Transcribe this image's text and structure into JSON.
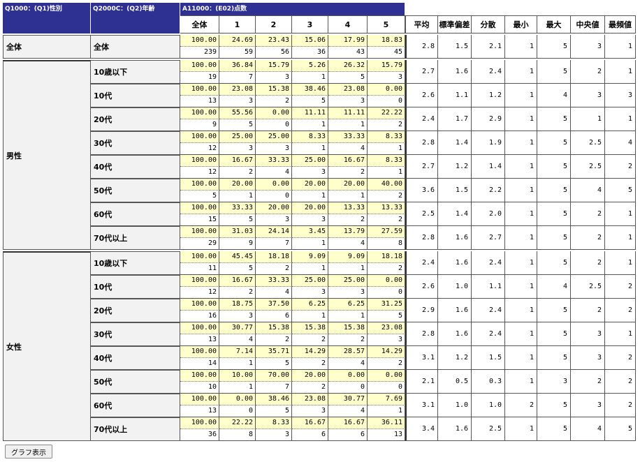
{
  "header": {
    "sex_col": "Q1000：(Q1)性別",
    "age_col": "Q2000C：(Q2)年齢",
    "score_col": "A11000：(E02)点数"
  },
  "columns": {
    "score": [
      "全体",
      "1",
      "2",
      "3",
      "4",
      "5"
    ],
    "stats": [
      "平均",
      "標準偏差",
      "分散",
      "最小",
      "最大",
      "中央値",
      "最頻値"
    ]
  },
  "groups": [
    {
      "label": "全体",
      "rows": [
        {
          "label": "全体",
          "pct": [
            "100.00",
            "24.69",
            "23.43",
            "15.06",
            "17.99",
            "18.83"
          ],
          "n": [
            "239",
            "59",
            "56",
            "36",
            "43",
            "45"
          ],
          "stats": [
            "2.8",
            "1.5",
            "2.1",
            "1",
            "5",
            "3",
            "1"
          ]
        }
      ]
    },
    {
      "label": "男性",
      "rows": [
        {
          "label": "10歳以下",
          "pct": [
            "100.00",
            "36.84",
            "15.79",
            "5.26",
            "26.32",
            "15.79"
          ],
          "n": [
            "19",
            "7",
            "3",
            "1",
            "5",
            "3"
          ],
          "stats": [
            "2.7",
            "1.6",
            "2.4",
            "1",
            "5",
            "2",
            "1"
          ]
        },
        {
          "label": "10代",
          "pct": [
            "100.00",
            "23.08",
            "15.38",
            "38.46",
            "23.08",
            "0.00"
          ],
          "n": [
            "13",
            "3",
            "2",
            "5",
            "3",
            "0"
          ],
          "stats": [
            "2.6",
            "1.1",
            "1.2",
            "1",
            "4",
            "3",
            "3"
          ]
        },
        {
          "label": "20代",
          "pct": [
            "100.00",
            "55.56",
            "0.00",
            "11.11",
            "11.11",
            "22.22"
          ],
          "n": [
            "9",
            "5",
            "0",
            "1",
            "1",
            "2"
          ],
          "stats": [
            "2.4",
            "1.7",
            "2.9",
            "1",
            "5",
            "1",
            "1"
          ]
        },
        {
          "label": "30代",
          "pct": [
            "100.00",
            "25.00",
            "25.00",
            "8.33",
            "33.33",
            "8.33"
          ],
          "n": [
            "12",
            "3",
            "3",
            "1",
            "4",
            "1"
          ],
          "stats": [
            "2.8",
            "1.4",
            "1.9",
            "1",
            "5",
            "2.5",
            "4"
          ]
        },
        {
          "label": "40代",
          "pct": [
            "100.00",
            "16.67",
            "33.33",
            "25.00",
            "16.67",
            "8.33"
          ],
          "n": [
            "12",
            "2",
            "4",
            "3",
            "2",
            "1"
          ],
          "stats": [
            "2.7",
            "1.2",
            "1.4",
            "1",
            "5",
            "2.5",
            "2"
          ]
        },
        {
          "label": "50代",
          "pct": [
            "100.00",
            "20.00",
            "0.00",
            "20.00",
            "20.00",
            "40.00"
          ],
          "n": [
            "5",
            "1",
            "0",
            "1",
            "1",
            "2"
          ],
          "stats": [
            "3.6",
            "1.5",
            "2.2",
            "1",
            "5",
            "4",
            "5"
          ]
        },
        {
          "label": "60代",
          "pct": [
            "100.00",
            "33.33",
            "20.00",
            "20.00",
            "13.33",
            "13.33"
          ],
          "n": [
            "15",
            "5",
            "3",
            "3",
            "2",
            "2"
          ],
          "stats": [
            "2.5",
            "1.4",
            "2.0",
            "1",
            "5",
            "2",
            "1"
          ]
        },
        {
          "label": "70代以上",
          "pct": [
            "100.00",
            "31.03",
            "24.14",
            "3.45",
            "13.79",
            "27.59"
          ],
          "n": [
            "29",
            "9",
            "7",
            "1",
            "4",
            "8"
          ],
          "stats": [
            "2.8",
            "1.6",
            "2.7",
            "1",
            "5",
            "2",
            "1"
          ]
        }
      ]
    },
    {
      "label": "女性",
      "rows": [
        {
          "label": "10歳以下",
          "pct": [
            "100.00",
            "45.45",
            "18.18",
            "9.09",
            "9.09",
            "18.18"
          ],
          "n": [
            "11",
            "5",
            "2",
            "1",
            "1",
            "2"
          ],
          "stats": [
            "2.4",
            "1.6",
            "2.4",
            "1",
            "5",
            "2",
            "1"
          ]
        },
        {
          "label": "10代",
          "pct": [
            "100.00",
            "16.67",
            "33.33",
            "25.00",
            "25.00",
            "0.00"
          ],
          "n": [
            "12",
            "2",
            "4",
            "3",
            "3",
            "0"
          ],
          "stats": [
            "2.6",
            "1.0",
            "1.1",
            "1",
            "4",
            "2.5",
            "2"
          ]
        },
        {
          "label": "20代",
          "pct": [
            "100.00",
            "18.75",
            "37.50",
            "6.25",
            "6.25",
            "31.25"
          ],
          "n": [
            "16",
            "3",
            "6",
            "1",
            "1",
            "5"
          ],
          "stats": [
            "2.9",
            "1.6",
            "2.4",
            "1",
            "5",
            "2",
            "2"
          ]
        },
        {
          "label": "30代",
          "pct": [
            "100.00",
            "30.77",
            "15.38",
            "15.38",
            "15.38",
            "23.08"
          ],
          "n": [
            "13",
            "4",
            "2",
            "2",
            "2",
            "3"
          ],
          "stats": [
            "2.8",
            "1.6",
            "2.4",
            "1",
            "5",
            "3",
            "1"
          ]
        },
        {
          "label": "40代",
          "pct": [
            "100.00",
            "7.14",
            "35.71",
            "14.29",
            "28.57",
            "14.29"
          ],
          "n": [
            "14",
            "1",
            "5",
            "2",
            "4",
            "2"
          ],
          "stats": [
            "3.1",
            "1.2",
            "1.5",
            "1",
            "5",
            "3",
            "2"
          ]
        },
        {
          "label": "50代",
          "pct": [
            "100.00",
            "10.00",
            "70.00",
            "20.00",
            "0.00",
            "0.00"
          ],
          "n": [
            "10",
            "1",
            "7",
            "2",
            "0",
            "0"
          ],
          "stats": [
            "2.1",
            "0.5",
            "0.3",
            "1",
            "3",
            "2",
            "2"
          ]
        },
        {
          "label": "60代",
          "pct": [
            "100.00",
            "0.00",
            "38.46",
            "23.08",
            "30.77",
            "7.69"
          ],
          "n": [
            "13",
            "0",
            "5",
            "3",
            "4",
            "1"
          ],
          "stats": [
            "3.1",
            "1.0",
            "1.0",
            "2",
            "5",
            "3",
            "2"
          ]
        },
        {
          "label": "70代以上",
          "pct": [
            "100.00",
            "22.22",
            "8.33",
            "16.67",
            "16.67",
            "36.11"
          ],
          "n": [
            "36",
            "8",
            "3",
            "6",
            "6",
            "13"
          ],
          "stats": [
            "3.4",
            "1.6",
            "2.5",
            "1",
            "5",
            "4",
            "5"
          ]
        }
      ]
    }
  ],
  "button": {
    "label": "グラフ表示"
  }
}
